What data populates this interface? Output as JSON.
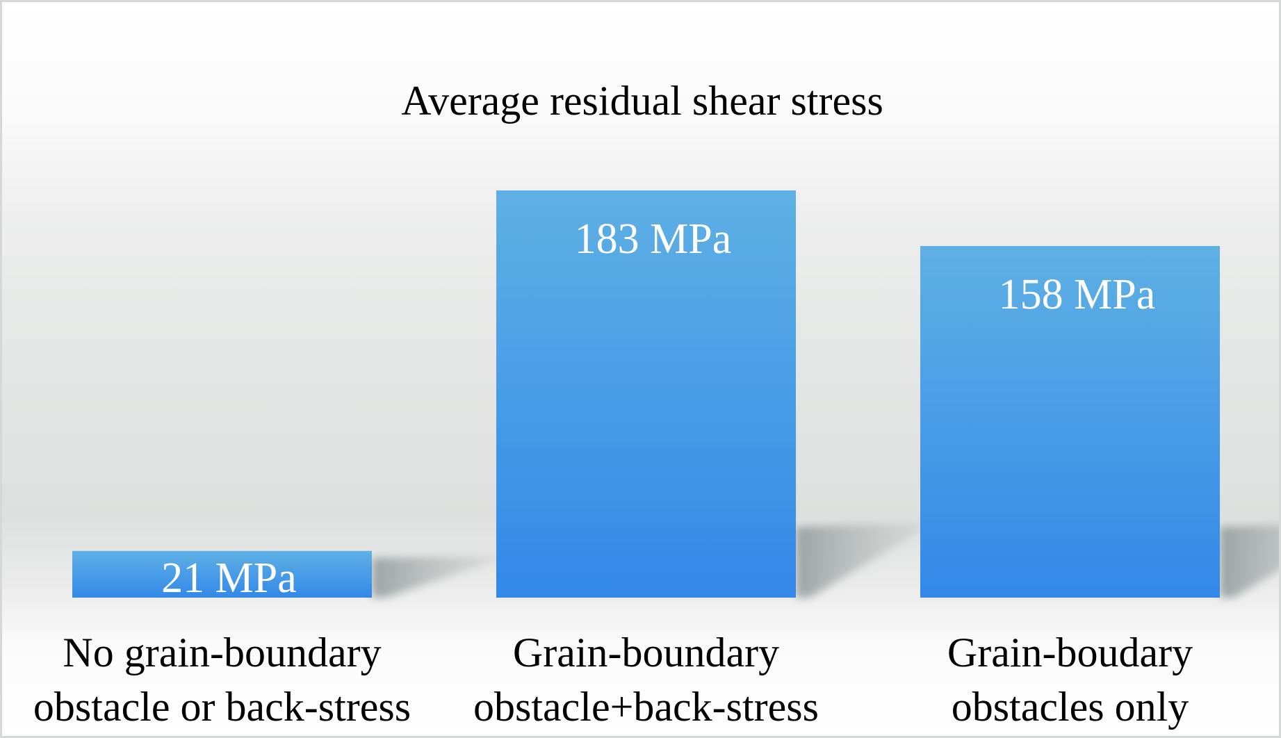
{
  "chart_data": {
    "type": "bar",
    "title": "Average residual shear stress",
    "xlabel": "",
    "ylabel": "",
    "unit": "MPa",
    "ylim": [
      0,
      183
    ],
    "grid": false,
    "legend": "none",
    "categories": [
      [
        "No grain-boundary",
        "obstacle or back-stress"
      ],
      [
        "Grain-boundary",
        "obstacle+back-stress"
      ],
      [
        "Grain-boudary",
        "obstacles only"
      ]
    ],
    "values": [
      21,
      183,
      158
    ],
    "data_labels": [
      "21 MPa",
      "183 MPa",
      "158 MPa"
    ],
    "colors": {
      "bar_top": "#5fb0e4",
      "bar_bottom": "#3388e8",
      "label_text": "#ffffff",
      "axis_text": "#000000",
      "shadow": "#9aa3a3"
    }
  }
}
